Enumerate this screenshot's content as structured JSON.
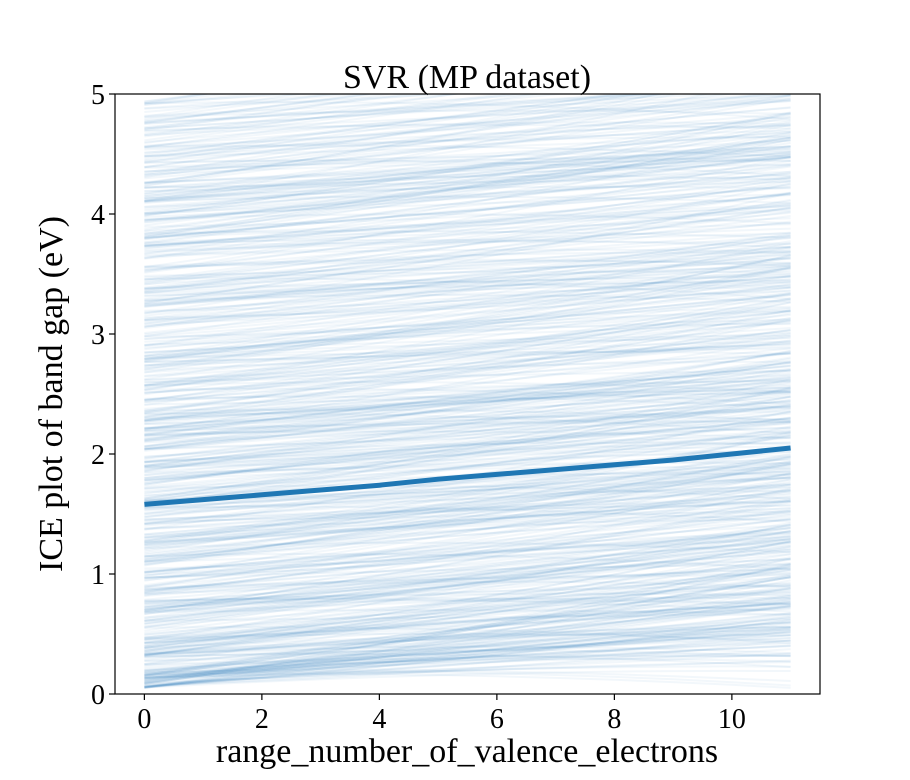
{
  "chart_data": {
    "type": "line",
    "title": "SVR (MP dataset)",
    "xlabel": "range_number_of_valence_electrons",
    "ylabel": "ICE plot of band gap (eV)",
    "xlim": [
      -0.5,
      11.5
    ],
    "ylim": [
      0,
      5
    ],
    "xticks": [
      "0",
      "2",
      "4",
      "6",
      "8",
      "10"
    ],
    "yticks": [
      "0",
      "1",
      "2",
      "3",
      "4",
      "5"
    ],
    "x_range": [
      0,
      11
    ],
    "ice_color": "#1f77b4",
    "ice_curve_count": 700,
    "ice_curve_alpha": 0.06,
    "ice_curve_value_range": [
      0.05,
      4.95
    ],
    "ice_curve_slope_range_per_unit": [
      0.005,
      0.075
    ],
    "series": [
      {
        "x": [
          0,
          1,
          2,
          3,
          4,
          5,
          6,
          7,
          8,
          9,
          10,
          11
        ],
        "y": [
          1.58,
          1.62,
          1.66,
          1.7,
          1.74,
          1.79,
          1.83,
          1.87,
          1.91,
          1.95,
          2.0,
          2.05
        ]
      }
    ],
    "grid": false,
    "legend": "none"
  }
}
